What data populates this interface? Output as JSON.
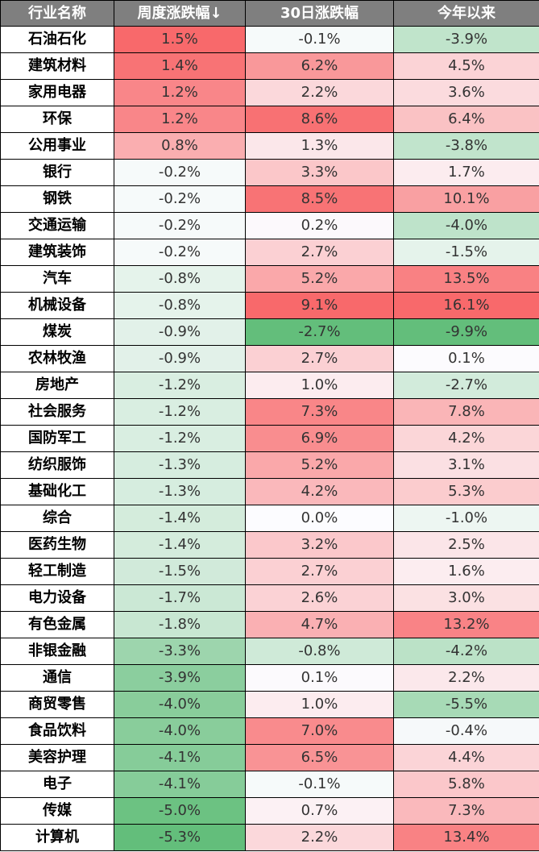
{
  "chart_data": {
    "type": "heatmap",
    "columns": [
      "行业名称",
      "周度涨跌幅↓",
      "30日涨跌幅",
      "今年以来"
    ],
    "rows": [
      {
        "name": "石油石化",
        "values": [
          "1.5%",
          "-0.1%",
          "-3.9%"
        ]
      },
      {
        "name": "建筑材料",
        "values": [
          "1.4%",
          "6.2%",
          "4.5%"
        ]
      },
      {
        "name": "家用电器",
        "values": [
          "1.2%",
          "2.2%",
          "3.6%"
        ]
      },
      {
        "name": "环保",
        "values": [
          "1.2%",
          "8.6%",
          "6.4%"
        ]
      },
      {
        "name": "公用事业",
        "values": [
          "0.8%",
          "1.3%",
          "-3.8%"
        ]
      },
      {
        "name": "银行",
        "values": [
          "-0.2%",
          "3.3%",
          "1.7%"
        ]
      },
      {
        "name": "钢铁",
        "values": [
          "-0.2%",
          "8.5%",
          "10.1%"
        ]
      },
      {
        "name": "交通运输",
        "values": [
          "-0.2%",
          "0.2%",
          "-4.0%"
        ]
      },
      {
        "name": "建筑装饰",
        "values": [
          "-0.2%",
          "2.7%",
          "-1.5%"
        ]
      },
      {
        "name": "汽车",
        "values": [
          "-0.8%",
          "5.2%",
          "13.5%"
        ]
      },
      {
        "name": "机械设备",
        "values": [
          "-0.8%",
          "9.1%",
          "16.1%"
        ]
      },
      {
        "name": "煤炭",
        "values": [
          "-0.9%",
          "-2.7%",
          "-9.9%"
        ]
      },
      {
        "name": "农林牧渔",
        "values": [
          "-0.9%",
          "2.7%",
          "0.1%"
        ]
      },
      {
        "name": "房地产",
        "values": [
          "-1.2%",
          "1.0%",
          "-2.7%"
        ]
      },
      {
        "name": "社会服务",
        "values": [
          "-1.2%",
          "7.3%",
          "7.8%"
        ]
      },
      {
        "name": "国防军工",
        "values": [
          "-1.2%",
          "6.9%",
          "4.2%"
        ]
      },
      {
        "name": "纺织服饰",
        "values": [
          "-1.3%",
          "5.2%",
          "3.1%"
        ]
      },
      {
        "name": "基础化工",
        "values": [
          "-1.3%",
          "4.2%",
          "5.3%"
        ]
      },
      {
        "name": "综合",
        "values": [
          "-1.4%",
          "0.0%",
          "-1.0%"
        ]
      },
      {
        "name": "医药生物",
        "values": [
          "-1.4%",
          "3.2%",
          "2.5%"
        ]
      },
      {
        "name": "轻工制造",
        "values": [
          "-1.5%",
          "2.7%",
          "1.6%"
        ]
      },
      {
        "name": "电力设备",
        "values": [
          "-1.7%",
          "2.6%",
          "3.0%"
        ]
      },
      {
        "name": "有色金属",
        "values": [
          "-1.8%",
          "4.7%",
          "13.2%"
        ]
      },
      {
        "name": "非银金融",
        "values": [
          "-3.3%",
          "-0.8%",
          "-4.2%"
        ]
      },
      {
        "name": "通信",
        "values": [
          "-3.9%",
          "0.1%",
          "2.2%"
        ]
      },
      {
        "name": "商贸零售",
        "values": [
          "-4.0%",
          "1.0%",
          "-5.5%"
        ]
      },
      {
        "name": "食品饮料",
        "values": [
          "-4.0%",
          "7.0%",
          "-0.4%"
        ]
      },
      {
        "name": "美容护理",
        "values": [
          "-4.1%",
          "6.5%",
          "4.4%"
        ]
      },
      {
        "name": "电子",
        "values": [
          "-4.1%",
          "-0.1%",
          "5.8%"
        ]
      },
      {
        "name": "传媒",
        "values": [
          "-5.0%",
          "0.7%",
          "7.3%"
        ]
      },
      {
        "name": "计算机",
        "values": [
          "-5.3%",
          "2.2%",
          "13.4%"
        ]
      }
    ],
    "color_scale": {
      "positive": "#f8696b",
      "zero": "#fcfcff",
      "negative": "#63be7b"
    }
  }
}
